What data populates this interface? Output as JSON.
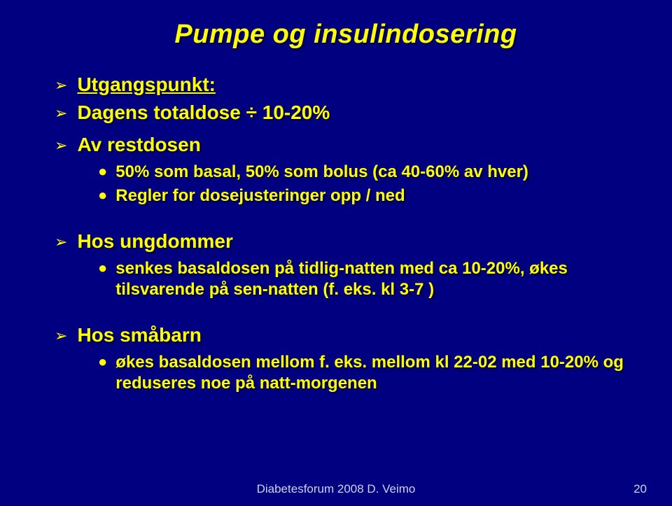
{
  "background_color": "#000080",
  "title_color": "#ffff00",
  "text_color": "#ffff00",
  "footer_color": "#cfd0f0",
  "title": "Pumpe og insulindosering",
  "section1": {
    "heading": "Utgangspunkt:",
    "line2": "Dagens totaldose ÷ 10-20%",
    "line3": "Av restdosen",
    "sub1": "50% som basal, 50% som bolus (ca 40-60% av hver)",
    "sub2": "Regler for dosejusteringer opp / ned"
  },
  "section2": {
    "heading": "Hos ungdommer",
    "sub1": "senkes basaldosen på tidlig-natten med ca 10-20%, økes tilsvarende på sen-natten (f. eks. kl 3-7 )"
  },
  "section3": {
    "heading": "Hos småbarn",
    "sub1": "økes basaldosen mellom f. eks. mellom kl 22-02 med 10-20% og reduseres noe på natt-morgenen"
  },
  "footer": "Diabetesforum 2008 D. Veimo",
  "page": "20"
}
